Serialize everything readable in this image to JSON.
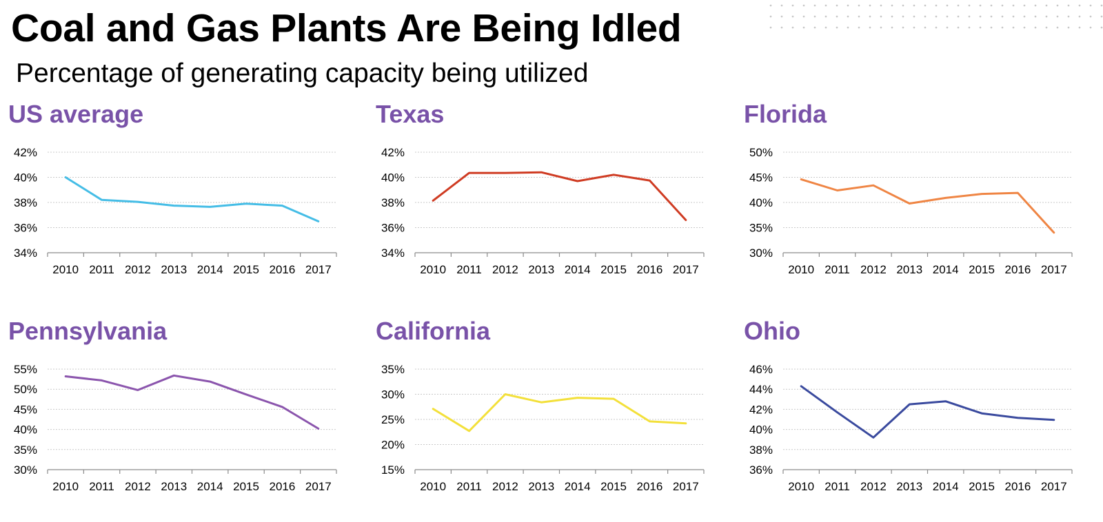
{
  "header": {
    "title": "Coal and Gas Plants Are Being Idled",
    "subtitle": "Percentage of generating capacity being utilized"
  },
  "chart_data": [
    {
      "type": "line",
      "title": "US average",
      "color": "#45bde6",
      "x": [
        "2010",
        "2011",
        "2012",
        "2013",
        "2014",
        "2015",
        "2016",
        "2017"
      ],
      "values": [
        40.0,
        38.2,
        38.05,
        37.75,
        37.65,
        37.9,
        37.75,
        36.5
      ],
      "ylim": [
        34,
        42
      ],
      "yticks": [
        34,
        36,
        38,
        40,
        42
      ],
      "ytick_labels": [
        "34%",
        "36%",
        "38%",
        "40%",
        "42%"
      ],
      "grid": true
    },
    {
      "type": "line",
      "title": "Texas",
      "color": "#cf3b22",
      "x": [
        "2010",
        "2011",
        "2012",
        "2013",
        "2014",
        "2015",
        "2016",
        "2017"
      ],
      "values": [
        38.15,
        40.35,
        40.35,
        40.4,
        39.7,
        40.2,
        39.75,
        36.6
      ],
      "ylim": [
        34,
        42
      ],
      "yticks": [
        34,
        36,
        38,
        40,
        42
      ],
      "ytick_labels": [
        "34%",
        "36%",
        "38%",
        "40%",
        "42%"
      ],
      "grid": true
    },
    {
      "type": "line",
      "title": "Florida",
      "color": "#ef8544",
      "x": [
        "2010",
        "2011",
        "2012",
        "2013",
        "2014",
        "2015",
        "2016",
        "2017"
      ],
      "values": [
        44.6,
        42.4,
        43.4,
        39.8,
        40.9,
        41.7,
        41.9,
        34.0
      ],
      "ylim": [
        30,
        50
      ],
      "yticks": [
        30,
        35,
        40,
        45,
        50
      ],
      "ytick_labels": [
        "30%",
        "35%",
        "40%",
        "45%",
        "50%"
      ],
      "grid": true
    },
    {
      "type": "line",
      "title": "Pennsylvania",
      "color": "#8b55ad",
      "x": [
        "2010",
        "2011",
        "2012",
        "2013",
        "2014",
        "2015",
        "2016",
        "2017"
      ],
      "values": [
        53.2,
        52.2,
        49.8,
        53.4,
        51.9,
        48.7,
        45.6,
        40.2
      ],
      "ylim": [
        30,
        55
      ],
      "yticks": [
        30,
        35,
        40,
        45,
        50,
        55
      ],
      "ytick_labels": [
        "30%",
        "35%",
        "40%",
        "45%",
        "50%",
        "55%"
      ],
      "grid": true
    },
    {
      "type": "line",
      "title": "California",
      "color": "#f3e03a",
      "x": [
        "2010",
        "2011",
        "2012",
        "2013",
        "2014",
        "2015",
        "2016",
        "2017"
      ],
      "values": [
        27.1,
        22.7,
        30.0,
        28.4,
        29.3,
        29.1,
        24.6,
        24.2
      ],
      "ylim": [
        15,
        35
      ],
      "yticks": [
        15,
        20,
        25,
        30,
        35
      ],
      "ytick_labels": [
        "15%",
        "20%",
        "25%",
        "30%",
        "35%"
      ],
      "grid": true
    },
    {
      "type": "line",
      "title": "Ohio",
      "color": "#3a4a9e",
      "x": [
        "2010",
        "2011",
        "2012",
        "2013",
        "2014",
        "2015",
        "2016",
        "2017"
      ],
      "values": [
        44.3,
        41.7,
        39.2,
        42.5,
        42.8,
        41.6,
        41.15,
        40.95
      ],
      "ylim": [
        36,
        46
      ],
      "yticks": [
        36,
        38,
        40,
        42,
        44,
        46
      ],
      "ytick_labels": [
        "36%",
        "38%",
        "40%",
        "42%",
        "44%",
        "46%"
      ],
      "grid": true
    }
  ]
}
